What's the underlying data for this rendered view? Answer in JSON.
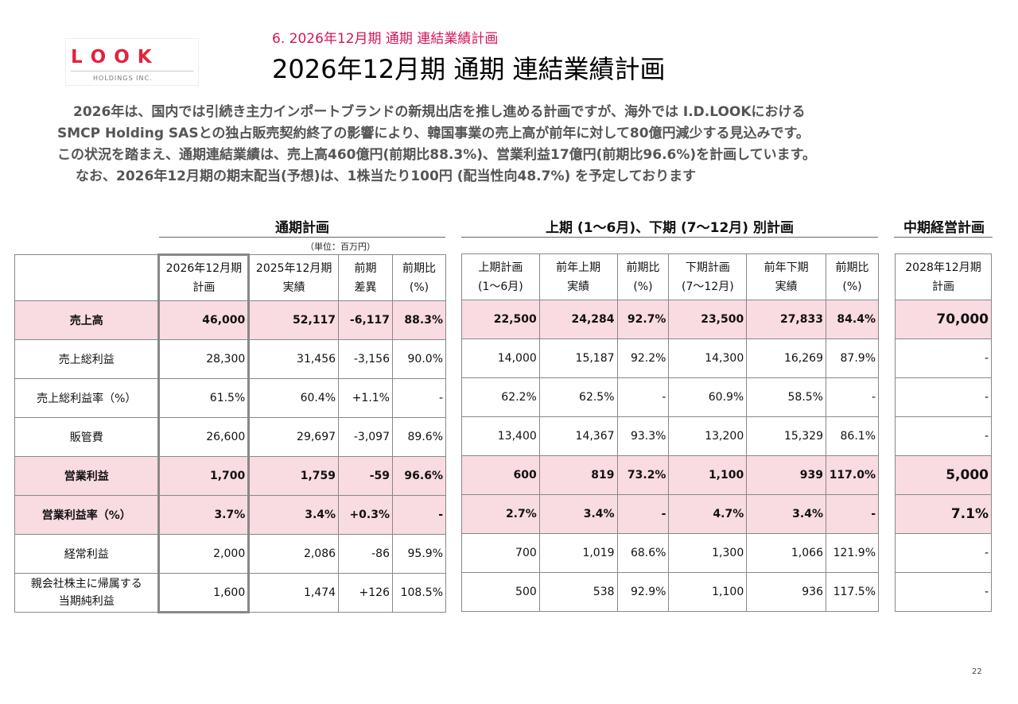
{
  "logo": {
    "letters": [
      "L",
      "O",
      "O",
      "K"
    ],
    "sub": "HOLDINGS INC.",
    "brand_color": "#e0243c"
  },
  "header": {
    "subtitle": "6. 2026年12月期 通期 連結業績計画",
    "title": "2026年12月期 通期 連結業績計画",
    "subtitle_color": "#d4145a"
  },
  "paragraph": [
    "2026年は、国内では引続き主力インポートブランドの新規出店を推し進める計画ですが、海外では I.D.LOOKにおける",
    "SMCP Holding SASとの独占販売契約終了の影響により、韓国事業の売上高が前年に対して80億円減少する見込みです。",
    "この状況を踏まえ、通期連結業績は、売上高460億円(前期比88.3%)、営業利益17億円(前期比96.6%)を計画しています。",
    "なお、2026年12月期の期末配当(予想)は、1株当たり100円 (配当性向48.7%) を予定しております"
  ],
  "sections": {
    "annual": "通期計画",
    "half": "上期 (1〜6月)、下期 (7〜12月) 別計画",
    "mid": "中期経営計画",
    "unit": "（単位：百万円）"
  },
  "table_annual": {
    "headers": [
      [
        "2026年12月期",
        "計画"
      ],
      [
        "2025年12月期",
        "実績"
      ],
      [
        "前期",
        "差異"
      ],
      [
        "前期比",
        "(%)"
      ]
    ],
    "rows": [
      {
        "label": "売上高",
        "values": [
          "46,000",
          "52,117",
          "-6,117",
          "88.3%"
        ],
        "hl": true
      },
      {
        "label": "売上総利益",
        "values": [
          "28,300",
          "31,456",
          "-3,156",
          "90.0%"
        ],
        "hl": false
      },
      {
        "label": "売上総利益率（%）",
        "values": [
          "61.5%",
          "60.4%",
          "+1.1%",
          "-"
        ],
        "hl": false
      },
      {
        "label": "販管費",
        "values": [
          "26,600",
          "29,697",
          "-3,097",
          "89.6%"
        ],
        "hl": false
      },
      {
        "label": "営業利益",
        "values": [
          "1,700",
          "1,759",
          "-59",
          "96.6%"
        ],
        "hl": true
      },
      {
        "label": "営業利益率（%）",
        "values": [
          "3.7%",
          "3.4%",
          "+0.3%",
          "-"
        ],
        "hl": true
      },
      {
        "label": "経常利益",
        "values": [
          "2,000",
          "2,086",
          "-86",
          "95.9%"
        ],
        "hl": false
      },
      {
        "label": "親会社株主に帰属する当期純利益",
        "label_lines": [
          "親会社株主に帰属する",
          "当期純利益"
        ],
        "values": [
          "1,600",
          "1,474",
          "+126",
          "108.5%"
        ],
        "hl": false
      }
    ]
  },
  "table_half": {
    "headers": [
      [
        "上期計画",
        "(1〜6月)"
      ],
      [
        "前年上期",
        "実績"
      ],
      [
        "前期比",
        "(%)"
      ],
      [
        "下期計画",
        "(7〜12月)"
      ],
      [
        "前年下期",
        "実績"
      ],
      [
        "前期比",
        "(%)"
      ]
    ],
    "rows": [
      [
        "22,500",
        "24,284",
        "92.7%",
        "23,500",
        "27,833",
        "84.4%"
      ],
      [
        "14,000",
        "15,187",
        "92.2%",
        "14,300",
        "16,269",
        "87.9%"
      ],
      [
        "62.2%",
        "62.5%",
        "-",
        "60.9%",
        "58.5%",
        "-"
      ],
      [
        "13,400",
        "14,367",
        "93.3%",
        "13,200",
        "15,329",
        "86.1%"
      ],
      [
        "600",
        "819",
        "73.2%",
        "1,100",
        "939",
        "117.0%"
      ],
      [
        "2.7%",
        "3.4%",
        "-",
        "4.7%",
        "3.4%",
        "-"
      ],
      [
        "700",
        "1,019",
        "68.6%",
        "1,300",
        "1,066",
        "121.9%"
      ],
      [
        "500",
        "538",
        "92.9%",
        "1,100",
        "936",
        "117.5%"
      ]
    ]
  },
  "table_mid": {
    "header": [
      "2028年12月期",
      "計画"
    ],
    "rows": [
      "70,000",
      "-",
      "-",
      "-",
      "5,000",
      "7.1%",
      "-",
      "-"
    ]
  },
  "page_number": "22",
  "colors": {
    "highlight_row": "#f9dbe2"
  }
}
